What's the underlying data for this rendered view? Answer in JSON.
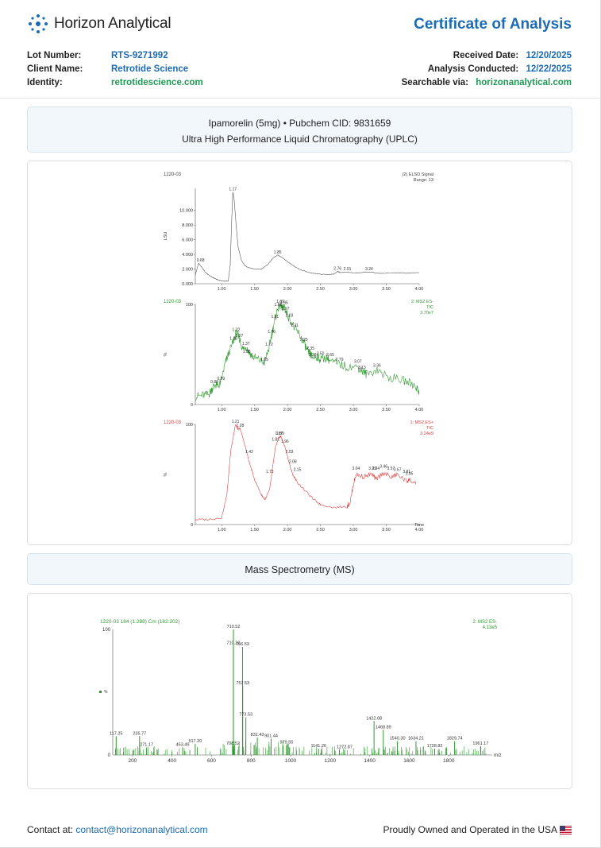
{
  "brand": {
    "name": "Horizon Analytical",
    "logo_icon": "sparkle-dots-icon",
    "color": "#1c6bb5"
  },
  "document": {
    "title": "Certificate of Analysis"
  },
  "meta_left": [
    {
      "key": "Lot Number:",
      "value": "RTS-9271992",
      "color": "#1c6bb5"
    },
    {
      "key": "Client Name:",
      "value": "Retrotide Science",
      "color": "#1c6bb5"
    },
    {
      "key": "Identity:",
      "value": "retrotidescience.com",
      "color": "#1f9a55"
    }
  ],
  "meta_right": [
    {
      "key": "Received Date:",
      "value": "12/20/2025"
    },
    {
      "key": "Analysis Conducted:",
      "value": "12/22/2025"
    },
    {
      "key": "Searchable via:",
      "value": "horizonanalytical.com"
    }
  ],
  "sample": {
    "compound": "Ipamorelin (5mg) • Pubchem CID: 9831659",
    "method": "Ultra High Performance Liquid Chromatography (UPLC)"
  },
  "ms_section_title": "Mass Spectrometry (MS)",
  "footer": {
    "contact_label": "Contact at:",
    "contact_email": "contact@horizonanalytical.com",
    "origin": "Proudly Owned and Operated in the USA",
    "flag_icon": "us-flag-icon"
  },
  "chart_data": [
    {
      "type": "line",
      "sample_id": "1220-03",
      "legend": [
        "(2) ELSD Signal",
        "Range: 13"
      ],
      "ylabel": "LSU",
      "xlim": [
        0.6,
        4.0
      ],
      "ylim": [
        0,
        13000
      ],
      "y_ticks": [
        "0.000",
        "2.000",
        "4.000",
        "6.000",
        "8.000",
        "10.000"
      ],
      "x_ticks": [
        "1.00",
        "1.50",
        "2.00",
        "2.50",
        "3.00",
        "3.50",
        "4.00"
      ],
      "color": "#555555",
      "x": [
        0.6,
        0.65,
        0.7,
        0.75,
        0.8,
        0.85,
        0.9,
        0.95,
        1.0,
        1.05,
        1.1,
        1.13,
        1.15,
        1.17,
        1.19,
        1.22,
        1.25,
        1.3,
        1.35,
        1.4,
        1.5,
        1.6,
        1.7,
        1.78,
        1.85,
        1.92,
        2.0,
        2.1,
        2.2,
        2.3,
        2.4,
        2.5,
        2.6,
        2.7,
        2.76,
        2.8,
        2.91,
        3.0,
        3.1,
        3.24,
        3.4,
        3.6,
        3.8,
        4.0
      ],
      "y": [
        1200,
        2800,
        2200,
        1600,
        1200,
        900,
        700,
        500,
        400,
        350,
        350,
        2500,
        8000,
        12500,
        11500,
        8000,
        5000,
        3200,
        2500,
        2200,
        2000,
        2000,
        2600,
        3500,
        3900,
        3600,
        3000,
        2400,
        1900,
        1600,
        1400,
        1300,
        1250,
        1300,
        1700,
        1500,
        1600,
        1450,
        1500,
        1600,
        1400,
        1500,
        1450,
        1500
      ],
      "peak_labels": [
        {
          "x": 0.68,
          "y": 2800,
          "label": "0.68"
        },
        {
          "x": 1.17,
          "y": 12500,
          "label": "1.17"
        },
        {
          "x": 1.85,
          "y": 3900,
          "label": "1.85"
        },
        {
          "x": 2.76,
          "y": 1700,
          "label": "2.76"
        },
        {
          "x": 2.91,
          "y": 1600,
          "label": "2.91"
        },
        {
          "x": 3.24,
          "y": 1600,
          "label": "3.24"
        }
      ]
    },
    {
      "type": "line",
      "sample_id": "1220-03",
      "legend": [
        "2: MS2 ES-",
        "TIC",
        "3.70e7"
      ],
      "ylabel": "%",
      "xlim": [
        0.6,
        4.0
      ],
      "ylim": [
        0,
        100
      ],
      "y_ticks": [
        "0",
        "100"
      ],
      "x_ticks": [
        "1.00",
        "1.50",
        "2.00",
        "2.50",
        "3.00",
        "3.50",
        "4.00"
      ],
      "color": "#2f9a2f",
      "x": [
        0.6,
        0.7,
        0.8,
        0.85,
        0.89,
        0.95,
        0.99,
        1.05,
        1.1,
        1.18,
        1.22,
        1.27,
        1.32,
        1.37,
        1.42,
        1.47,
        1.55,
        1.65,
        1.72,
        1.76,
        1.81,
        1.86,
        1.89,
        1.92,
        1.95,
        1.97,
        2.03,
        2.11,
        2.18,
        2.25,
        2.3,
        2.35,
        2.38,
        2.45,
        2.5,
        2.6,
        2.65,
        2.79,
        2.9,
        3.07,
        3.13,
        3.2,
        3.36,
        3.5,
        3.7,
        3.85,
        3.95,
        4.0
      ],
      "y": [
        8,
        9,
        10,
        15,
        20,
        18,
        23,
        40,
        50,
        63,
        72,
        66,
        55,
        58,
        52,
        48,
        45,
        42,
        57,
        70,
        85,
        97,
        100,
        95,
        99,
        93,
        86,
        76,
        70,
        62,
        53,
        50,
        47,
        48,
        45,
        47,
        43,
        40,
        38,
        37,
        34,
        30,
        35,
        28,
        25,
        22,
        18,
        12
      ],
      "peak_labels": [
        {
          "x": 0.89,
          "y": 20,
          "label": "0.89"
        },
        {
          "x": 0.99,
          "y": 23,
          "label": "0.99"
        },
        {
          "x": 1.18,
          "y": 63,
          "label": "1.18"
        },
        {
          "x": 1.22,
          "y": 72,
          "label": "1.22"
        },
        {
          "x": 1.27,
          "y": 66,
          "label": "1.27"
        },
        {
          "x": 1.37,
          "y": 58,
          "label": "1.37"
        },
        {
          "x": 1.38,
          "y": 50,
          "label": "1.38"
        },
        {
          "x": 1.65,
          "y": 42,
          "label": "1.65"
        },
        {
          "x": 1.72,
          "y": 57,
          "label": "1.72"
        },
        {
          "x": 1.76,
          "y": 70,
          "label": "1.76"
        },
        {
          "x": 1.81,
          "y": 85,
          "label": "1.81"
        },
        {
          "x": 1.86,
          "y": 97,
          "label": "1.86"
        },
        {
          "x": 1.89,
          "y": 100,
          "label": "1.89"
        },
        {
          "x": 1.95,
          "y": 99,
          "label": "1.95"
        },
        {
          "x": 1.97,
          "y": 93,
          "label": "1.97"
        },
        {
          "x": 2.03,
          "y": 86,
          "label": "2.03"
        },
        {
          "x": 2.11,
          "y": 76,
          "label": "2.11"
        },
        {
          "x": 2.25,
          "y": 62,
          "label": "2.25"
        },
        {
          "x": 2.35,
          "y": 53,
          "label": "2.35"
        },
        {
          "x": 2.38,
          "y": 47,
          "label": "2.38"
        },
        {
          "x": 2.5,
          "y": 48,
          "label": "2.50"
        },
        {
          "x": 2.65,
          "y": 47,
          "label": "2.65"
        },
        {
          "x": 2.79,
          "y": 42,
          "label": "2.79"
        },
        {
          "x": 3.07,
          "y": 40,
          "label": "3.07"
        },
        {
          "x": 3.13,
          "y": 34,
          "label": "3.13"
        },
        {
          "x": 3.36,
          "y": 36,
          "label": "3.36"
        }
      ]
    },
    {
      "type": "line",
      "sample_id": "1220-03",
      "legend": [
        "1: MS2 ES+",
        "TIC",
        "3.24e9"
      ],
      "ylabel": "%",
      "xlabel": "Time",
      "xlim": [
        0.6,
        4.0
      ],
      "ylim": [
        0,
        100
      ],
      "y_ticks": [
        "0",
        "100"
      ],
      "x_ticks": [
        "1.00",
        "1.50",
        "2.00",
        "2.50",
        "3.00",
        "3.50",
        "4.00"
      ],
      "color": "#e04040",
      "x": [
        0.6,
        0.8,
        1.0,
        1.08,
        1.14,
        1.21,
        1.25,
        1.28,
        1.35,
        1.42,
        1.5,
        1.6,
        1.66,
        1.73,
        1.78,
        1.82,
        1.87,
        1.9,
        1.96,
        2.03,
        2.08,
        2.15,
        2.25,
        2.4,
        2.5,
        2.7,
        2.9,
        2.95,
        3.0,
        3.04,
        3.15,
        3.29,
        3.34,
        3.46,
        3.57,
        3.67,
        3.81,
        3.85,
        3.95
      ],
      "y": [
        5,
        5,
        7,
        30,
        75,
        100,
        95,
        96,
        80,
        62,
        45,
        30,
        25,
        35,
        60,
        78,
        87,
        88,
        78,
        60,
        50,
        42,
        35,
        25,
        20,
        17,
        18,
        22,
        40,
        50,
        48,
        50,
        45,
        52,
        47,
        50,
        43,
        45,
        40
      ],
      "peak_labels": [
        {
          "x": 1.21,
          "y": 100,
          "label": "1.21"
        },
        {
          "x": 1.28,
          "y": 96,
          "label": "1.28"
        },
        {
          "x": 1.42,
          "y": 70,
          "label": "1.42"
        },
        {
          "x": 1.73,
          "y": 50,
          "label": "1.73"
        },
        {
          "x": 1.82,
          "y": 82,
          "label": "1.82"
        },
        {
          "x": 1.87,
          "y": 88,
          "label": "1.87"
        },
        {
          "x": 1.89,
          "y": 88,
          "label": "1.89"
        },
        {
          "x": 1.96,
          "y": 80,
          "label": "1.96"
        },
        {
          "x": 2.03,
          "y": 70,
          "label": "2.03"
        },
        {
          "x": 2.08,
          "y": 60,
          "label": "2.08"
        },
        {
          "x": 2.15,
          "y": 52,
          "label": "2.15"
        },
        {
          "x": 3.04,
          "y": 53,
          "label": "3.04"
        },
        {
          "x": 3.29,
          "y": 53,
          "label": "3.29"
        },
        {
          "x": 3.34,
          "y": 53,
          "label": "3.34"
        },
        {
          "x": 3.46,
          "y": 55,
          "label": "3.46"
        },
        {
          "x": 3.57,
          "y": 53,
          "label": "3.57"
        },
        {
          "x": 3.67,
          "y": 52,
          "label": "3.67"
        },
        {
          "x": 3.81,
          "y": 50,
          "label": "3.81"
        },
        {
          "x": 3.85,
          "y": 48,
          "label": "3.85"
        }
      ]
    },
    {
      "type": "bar",
      "title": "1220-03 184 (1.288) Cm (182:202)",
      "legend": [
        "2: MS2 ES-",
        "4.13e5"
      ],
      "ylabel": "%",
      "xlabel": "m/z",
      "xlim": [
        100,
        2020
      ],
      "ylim": [
        0,
        100
      ],
      "y_ticks": [
        "0",
        "100"
      ],
      "x_ticks": [
        "200",
        "400",
        "600",
        "800",
        "1000",
        "1200",
        "1400",
        "1600",
        "1800"
      ],
      "color": "#2f9a2f",
      "peaks": [
        {
          "mz": 117.25,
          "intensity": 15,
          "label": "117.25"
        },
        {
          "mz": 235.77,
          "intensity": 15,
          "label": "235.77"
        },
        {
          "mz": 271.17,
          "intensity": 6,
          "label": "271.17"
        },
        {
          "mz": 453.49,
          "intensity": 6,
          "label": "453.49"
        },
        {
          "mz": 517.2,
          "intensity": 9,
          "label": "517.20"
        },
        {
          "mz": 708.52,
          "intensity": 7,
          "label": "708.52"
        },
        {
          "mz": 710.22,
          "intensity": 87,
          "label": "710.22"
        },
        {
          "mz": 710.52,
          "intensity": 100,
          "label": "710.52"
        },
        {
          "mz": 756.53,
          "intensity": 86,
          "label": "756.53"
        },
        {
          "mz": 757.53,
          "intensity": 55,
          "label": "757.53"
        },
        {
          "mz": 773.53,
          "intensity": 30,
          "label": "773.53"
        },
        {
          "mz": 831.43,
          "intensity": 14,
          "label": "831.43"
        },
        {
          "mz": 901.44,
          "intensity": 13,
          "label": "901.44"
        },
        {
          "mz": 979.55,
          "intensity": 8,
          "label": "979.55"
        },
        {
          "mz": 1141.26,
          "intensity": 5,
          "label": "1141.26"
        },
        {
          "mz": 1272.87,
          "intensity": 4,
          "label": "1272.87"
        },
        {
          "mz": 1422.08,
          "intensity": 27,
          "label": "1422.08"
        },
        {
          "mz": 1468.89,
          "intensity": 20,
          "label": "1468.89"
        },
        {
          "mz": 1540.3,
          "intensity": 11,
          "label": "1540.30"
        },
        {
          "mz": 1634.21,
          "intensity": 11,
          "label": "1634.21"
        },
        {
          "mz": 1728.82,
          "intensity": 5,
          "label": "1728.82"
        },
        {
          "mz": 1829.74,
          "intensity": 11,
          "label": "1829.74"
        },
        {
          "mz": 1961.17,
          "intensity": 7,
          "label": "1961.17"
        }
      ]
    }
  ]
}
